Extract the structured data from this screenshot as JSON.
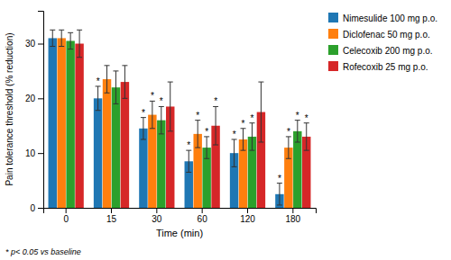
{
  "chart_data": {
    "type": "bar",
    "categories": [
      "0",
      "15",
      "30",
      "60",
      "120",
      "180"
    ],
    "series": [
      {
        "name": "Nimesulide 100 mg p.o.",
        "values": [
          31.0,
          20.0,
          14.5,
          8.5,
          10.0,
          2.5
        ],
        "errors": [
          1.5,
          2.2,
          2.0,
          2.0,
          2.5,
          2.0
        ],
        "sig_labels": [
          null,
          "*",
          "*",
          "*",
          "*",
          "*"
        ]
      },
      {
        "name": "Diclofenac 50 mg p.o.",
        "values": [
          31.0,
          23.5,
          17.0,
          13.5,
          12.5,
          11.0
        ],
        "errors": [
          1.5,
          2.5,
          2.5,
          2.5,
          2.0,
          2.0
        ],
        "sig_labels": [
          null,
          null,
          "*",
          "*",
          "*",
          "*"
        ]
      },
      {
        "name": "Celecoxib 200 mg p.o.",
        "values": [
          30.5,
          22.0,
          16.0,
          11.0,
          13.0,
          14.0
        ],
        "errors": [
          1.5,
          3.0,
          2.5,
          2.0,
          2.5,
          2.0
        ],
        "sig_labels": [
          null,
          null,
          "*",
          "*",
          "*",
          "*"
        ]
      },
      {
        "name": "Rofecoxib 25 mg p.o.",
        "values": [
          30.0,
          23.0,
          18.5,
          15.0,
          17.5,
          13.0
        ],
        "errors": [
          2.5,
          3.0,
          4.5,
          3.5,
          5.5,
          2.5
        ],
        "sig_labels": [
          null,
          null,
          null,
          "*",
          null,
          "*"
        ]
      }
    ],
    "xlabel": "Time (min)",
    "ylabel": "Pain tolerance threshold (% reduction)",
    "ylim": [
      0,
      36
    ],
    "yticks": [
      0,
      10,
      20,
      30
    ],
    "footnote": "* p< 0.05 vs baseline",
    "grid": false,
    "legend": "right"
  }
}
